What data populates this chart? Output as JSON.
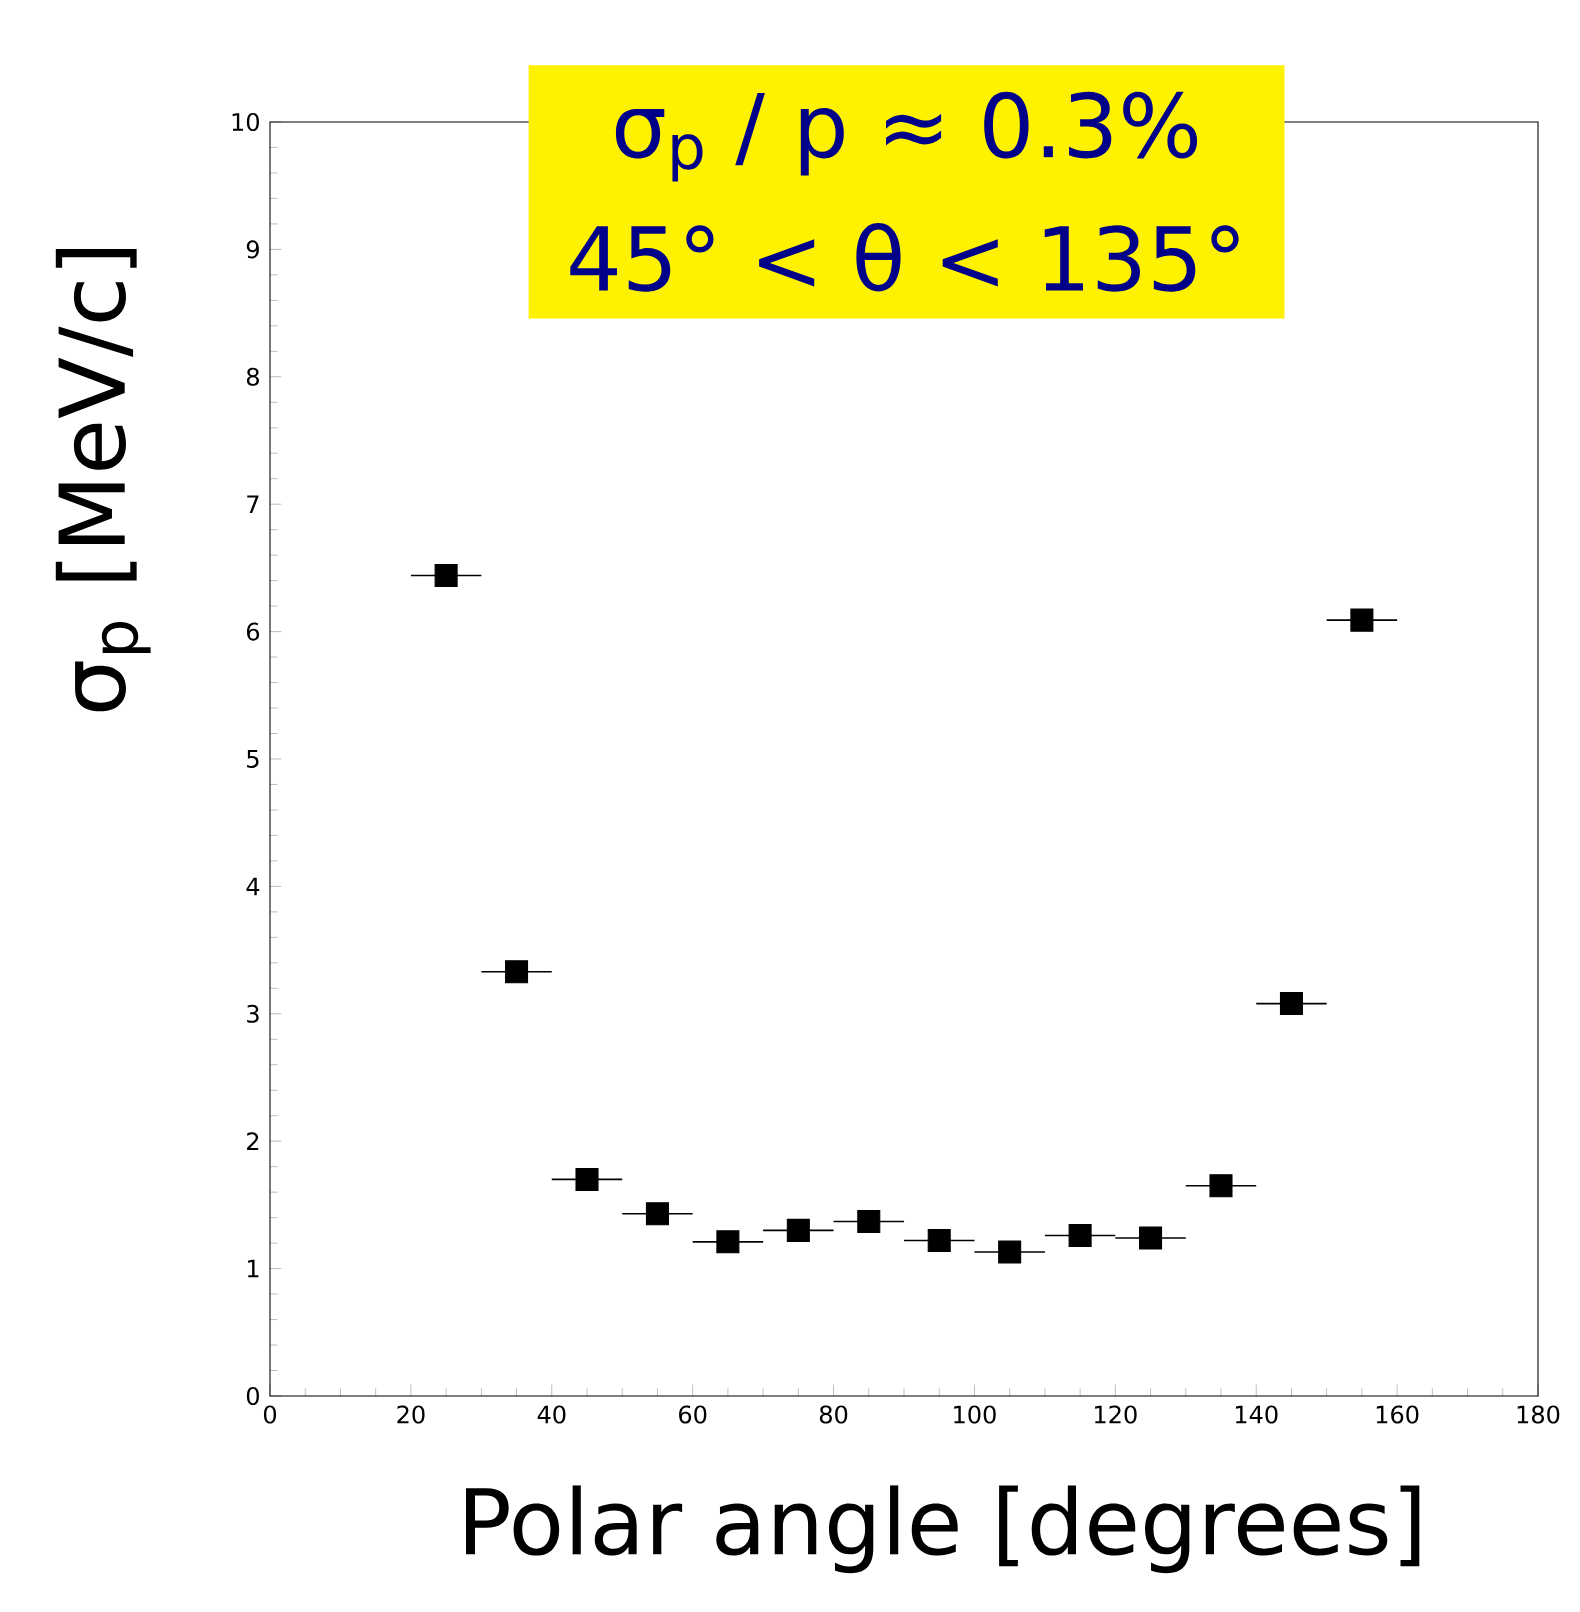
{
  "chart_data": {
    "type": "scatter",
    "xlabel": "Polar angle [degrees]",
    "ylabel": "σ$_{p}$ [MeV/c]",
    "annotations": [
      "σ$_{p}$ / p ≈ 0.3%",
      "45° < θ  < 135°"
    ],
    "x": [
      25,
      35,
      45,
      55,
      65,
      75,
      85,
      95,
      105,
      115,
      125,
      135,
      145,
      155
    ],
    "values": [
      6.44,
      3.33,
      1.7,
      1.43,
      1.21,
      1.3,
      1.37,
      1.22,
      1.13,
      1.26,
      1.24,
      1.65,
      3.08,
      6.09
    ],
    "xerrors": [
      5,
      5,
      5,
      5,
      5,
      5,
      5,
      5,
      5,
      5,
      5,
      5,
      5,
      5
    ],
    "color": "#000000",
    "marker": "square",
    "xlim": [
      0,
      180
    ],
    "xticks": [
      0,
      20,
      40,
      60,
      80,
      100,
      120,
      140,
      160,
      180
    ],
    "ylim": [
      0,
      10
    ],
    "yticks": [
      0,
      1,
      2,
      3,
      4,
      5,
      6,
      7,
      8,
      9,
      10
    ],
    "grid": false
  }
}
